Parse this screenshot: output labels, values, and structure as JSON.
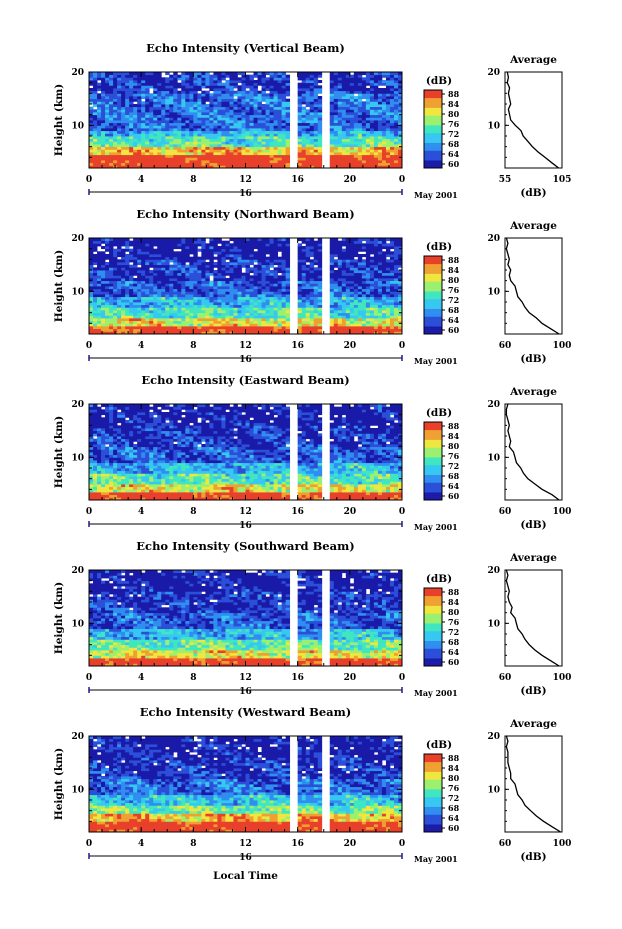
{
  "chart_data": [
    {
      "type": "heatmap",
      "title": "Echo Intensity (Vertical Beam)",
      "ylabel": "Height (km)",
      "yticks": [
        "10",
        "20"
      ],
      "ylim": [
        2,
        20
      ],
      "xticks": [
        "0",
        "4",
        "8",
        "12",
        "16",
        "20",
        "0"
      ],
      "xlim": [
        0,
        24
      ],
      "date_label": "16",
      "date_suffix": "May 2001",
      "colorbar": {
        "title": "(dB)",
        "ticks": [
          "88",
          "84",
          "80",
          "76",
          "72",
          "68",
          "64",
          "60"
        ],
        "range": [
          60,
          88
        ]
      },
      "average": {
        "title": "Average",
        "xticks": [
          "55",
          "105"
        ],
        "xlim": [
          55,
          105
        ],
        "yticks": [
          "10",
          "20"
        ],
        "xlabel": "(dB)",
        "profile": [
          [
            102,
            2
          ],
          [
            96,
            3
          ],
          [
            90,
            4
          ],
          [
            84,
            5
          ],
          [
            79,
            6
          ],
          [
            75,
            7
          ],
          [
            71,
            8
          ],
          [
            69,
            9
          ],
          [
            64,
            10
          ],
          [
            60,
            11
          ],
          [
            59,
            12
          ],
          [
            58,
            13
          ],
          [
            60,
            14
          ],
          [
            59,
            15
          ],
          [
            58,
            16
          ],
          [
            59,
            17
          ],
          [
            57,
            18
          ],
          [
            58,
            19
          ],
          [
            57,
            20
          ]
        ]
      },
      "gaps": [
        [
          15.5,
          16.0
        ],
        [
          18.0,
          18.6
        ]
      ],
      "bands": [
        [
          2,
          4.5,
          88
        ],
        [
          4.5,
          6,
          82
        ],
        [
          6,
          8,
          74
        ],
        [
          8,
          9,
          70
        ],
        [
          9,
          12,
          66
        ],
        [
          12,
          16,
          66
        ],
        [
          16,
          20,
          63
        ]
      ]
    },
    {
      "type": "heatmap",
      "title": "Echo Intensity (Northward Beam)",
      "ylabel": "Height (km)",
      "yticks": [
        "10",
        "20"
      ],
      "ylim": [
        2,
        20
      ],
      "xticks": [
        "0",
        "4",
        "8",
        "12",
        "16",
        "20",
        "0"
      ],
      "xlim": [
        0,
        24
      ],
      "date_label": "16",
      "date_suffix": "May 2001",
      "colorbar": {
        "title": "(dB)",
        "ticks": [
          "88",
          "84",
          "80",
          "76",
          "72",
          "68",
          "64",
          "60"
        ],
        "range": [
          60,
          88
        ]
      },
      "average": {
        "title": "Average",
        "xticks": [
          "60",
          "100"
        ],
        "xlim": [
          60,
          100
        ],
        "yticks": [
          "10",
          "20"
        ],
        "xlabel": "(dB)",
        "profile": [
          [
            98,
            2
          ],
          [
            92,
            3
          ],
          [
            86,
            4
          ],
          [
            82,
            5
          ],
          [
            77,
            6
          ],
          [
            74,
            7
          ],
          [
            72,
            8
          ],
          [
            69,
            9
          ],
          [
            68,
            10
          ],
          [
            67,
            11
          ],
          [
            64,
            12
          ],
          [
            63,
            13
          ],
          [
            64,
            14
          ],
          [
            62,
            15
          ],
          [
            63,
            16
          ],
          [
            62,
            17
          ],
          [
            61,
            18
          ],
          [
            62,
            19
          ],
          [
            61,
            20
          ]
        ]
      },
      "gaps": [
        [
          15.5,
          16.0
        ],
        [
          17.8,
          18.6
        ]
      ],
      "bands": [
        [
          2,
          3.5,
          88
        ],
        [
          3.5,
          5,
          80
        ],
        [
          5,
          7,
          74
        ],
        [
          7,
          9,
          70
        ],
        [
          9,
          12,
          65
        ],
        [
          12,
          16,
          63
        ],
        [
          16,
          20,
          61
        ]
      ]
    },
    {
      "type": "heatmap",
      "title": "Echo Intensity (Eastward Beam)",
      "ylabel": "Height (km)",
      "yticks": [
        "10",
        "20"
      ],
      "ylim": [
        2,
        20
      ],
      "xticks": [
        "0",
        "4",
        "8",
        "12",
        "16",
        "20",
        "0"
      ],
      "xlim": [
        0,
        24
      ],
      "date_label": "16",
      "date_suffix": "May 2001",
      "colorbar": {
        "title": "(dB)",
        "ticks": [
          "88",
          "84",
          "80",
          "76",
          "72",
          "68",
          "64",
          "60"
        ],
        "range": [
          60,
          88
        ]
      },
      "average": {
        "title": "Average",
        "xticks": [
          "60",
          "100"
        ],
        "xlim": [
          60,
          100
        ],
        "yticks": [
          "10",
          "20"
        ],
        "xlabel": "(dB)",
        "profile": [
          [
            98,
            2
          ],
          [
            93,
            3
          ],
          [
            86,
            4
          ],
          [
            81,
            5
          ],
          [
            76,
            6
          ],
          [
            73,
            7
          ],
          [
            71,
            8
          ],
          [
            68,
            9
          ],
          [
            67,
            10
          ],
          [
            66,
            11
          ],
          [
            63,
            12
          ],
          [
            64,
            13
          ],
          [
            63,
            14
          ],
          [
            62,
            15
          ],
          [
            63,
            16
          ],
          [
            62,
            17
          ],
          [
            61,
            18
          ],
          [
            61,
            19
          ],
          [
            62,
            20
          ]
        ]
      },
      "gaps": [
        [
          15.5,
          16.0
        ],
        [
          17.8,
          18.6
        ]
      ],
      "bands": [
        [
          2,
          3.5,
          88
        ],
        [
          3.5,
          5,
          80
        ],
        [
          5,
          7,
          74
        ],
        [
          7,
          9,
          70
        ],
        [
          9,
          12,
          65
        ],
        [
          12,
          16,
          63
        ],
        [
          16,
          20,
          61
        ]
      ]
    },
    {
      "type": "heatmap",
      "title": "Echo Intensity (Southward Beam)",
      "ylabel": "Height (km)",
      "yticks": [
        "10",
        "20"
      ],
      "ylim": [
        2,
        20
      ],
      "xticks": [
        "0",
        "4",
        "8",
        "12",
        "16",
        "20",
        "0"
      ],
      "xlim": [
        0,
        24
      ],
      "date_label": "16",
      "date_suffix": "May 2001",
      "colorbar": {
        "title": "(dB)",
        "ticks": [
          "88",
          "84",
          "80",
          "76",
          "72",
          "68",
          "64",
          "60"
        ],
        "range": [
          60,
          88
        ]
      },
      "average": {
        "title": "Average",
        "xticks": [
          "60",
          "100"
        ],
        "xlim": [
          60,
          100
        ],
        "yticks": [
          "10",
          "20"
        ],
        "xlabel": "(dB)",
        "profile": [
          [
            98,
            2
          ],
          [
            92,
            3
          ],
          [
            86,
            4
          ],
          [
            81,
            5
          ],
          [
            77,
            6
          ],
          [
            74,
            7
          ],
          [
            72,
            8
          ],
          [
            69,
            9
          ],
          [
            68,
            10
          ],
          [
            67,
            11
          ],
          [
            64,
            12
          ],
          [
            65,
            13
          ],
          [
            63,
            14
          ],
          [
            62,
            15
          ],
          [
            63,
            16
          ],
          [
            62,
            17
          ],
          [
            61,
            18
          ],
          [
            62,
            19
          ],
          [
            61,
            20
          ]
        ]
      },
      "gaps": [
        [
          15.5,
          16.0
        ],
        [
          17.8,
          18.6
        ]
      ],
      "bands": [
        [
          2,
          3.5,
          88
        ],
        [
          3.5,
          5,
          80
        ],
        [
          5,
          7,
          75
        ],
        [
          7,
          9,
          70
        ],
        [
          9,
          12,
          65
        ],
        [
          12,
          16,
          63
        ],
        [
          16,
          20,
          61
        ]
      ]
    },
    {
      "type": "heatmap",
      "title": "Echo Intensity (Westward Beam)",
      "ylabel": "Height (km)",
      "yticks": [
        "10",
        "20"
      ],
      "ylim": [
        2,
        20
      ],
      "xticks": [
        "0",
        "4",
        "8",
        "12",
        "16",
        "20",
        "0"
      ],
      "xlim": [
        0,
        24
      ],
      "date_label": "16",
      "date_suffix": "May 2001",
      "colorbar": {
        "title": "(dB)",
        "ticks": [
          "88",
          "84",
          "80",
          "76",
          "72",
          "68",
          "64",
          "60"
        ],
        "range": [
          60,
          88
        ]
      },
      "average": {
        "title": "Average",
        "xticks": [
          "60",
          "100"
        ],
        "xlim": [
          60,
          100
        ],
        "yticks": [
          "10",
          "20"
        ],
        "xlabel": "(dB)",
        "profile": [
          [
            99,
            2
          ],
          [
            93,
            3
          ],
          [
            87,
            4
          ],
          [
            82,
            5
          ],
          [
            78,
            6
          ],
          [
            74,
            7
          ],
          [
            72,
            8
          ],
          [
            69,
            9
          ],
          [
            68,
            10
          ],
          [
            67,
            11
          ],
          [
            64,
            12
          ],
          [
            64,
            13
          ],
          [
            63,
            14
          ],
          [
            62,
            15
          ],
          [
            62,
            16
          ],
          [
            62,
            17
          ],
          [
            61,
            18
          ],
          [
            62,
            19
          ],
          [
            61,
            20
          ]
        ]
      },
      "gaps": [
        [
          15.5,
          16.0
        ],
        [
          17.8,
          18.6
        ]
      ],
      "bands": [
        [
          2,
          4,
          88
        ],
        [
          4,
          5.5,
          82
        ],
        [
          5.5,
          7,
          76
        ],
        [
          7,
          9,
          71
        ],
        [
          9,
          12,
          66
        ],
        [
          12,
          16,
          63
        ],
        [
          16,
          20,
          61
        ]
      ]
    }
  ],
  "footer": {
    "xlabel": "Local Time"
  },
  "colormap": [
    "#1a1aa8",
    "#2b4fd8",
    "#2f8ef0",
    "#36c8f0",
    "#40e6c0",
    "#9cf070",
    "#f0e640",
    "#f0a030",
    "#e8402a"
  ]
}
